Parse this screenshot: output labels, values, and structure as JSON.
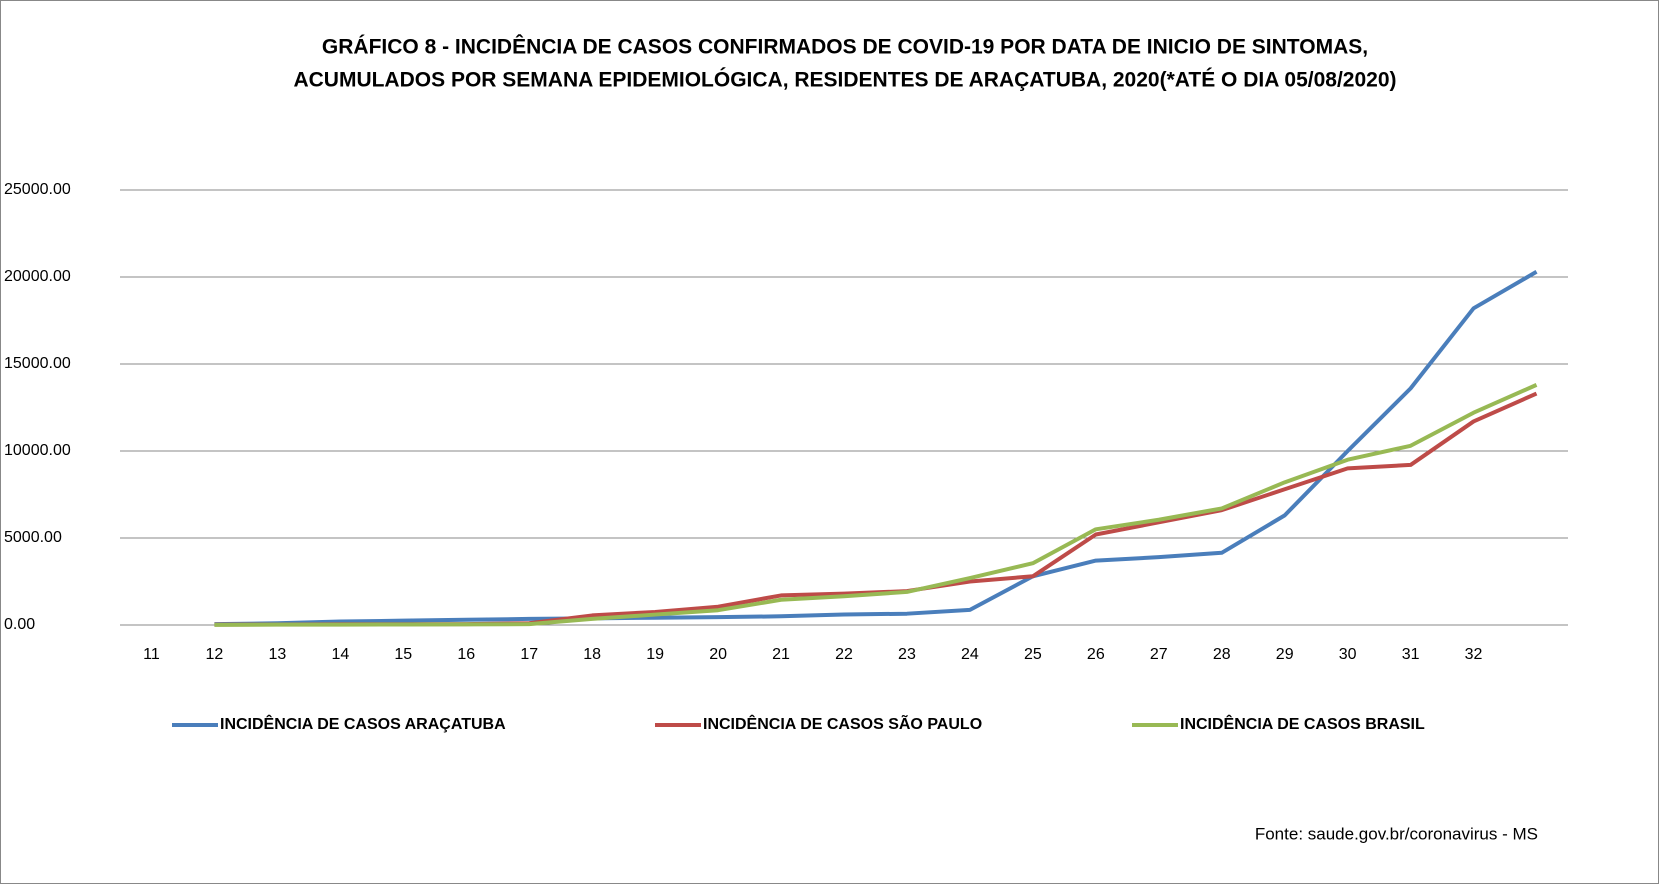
{
  "chart_data": {
    "type": "line",
    "title": [
      "GRÁFICO 8 - INCIDÊNCIA  DE CASOS CONFIRMADOS DE COVID-19 POR DATA DE INICIO DE SINTOMAS,",
      "ACUMULADOS POR SEMANA EPIDEMIOLÓGICA, RESIDENTES DE ARAÇATUBA, 2020(*ATÉ O DIA 05/08/2020)"
    ],
    "source": "Fonte: saude.gov.br/coronavirus - MS",
    "categories": [
      "11",
      "12",
      "13",
      "14",
      "15",
      "16",
      "17",
      "18",
      "19",
      "20",
      "21",
      "22",
      "23",
      "24",
      "25",
      "26",
      "27",
      "28",
      "29",
      "30",
      "31",
      "32",
      null
    ],
    "series": [
      {
        "name": "INCIDÊNCIA  DE CASOS ARAÇATUBA",
        "color": "#4a7ebb",
        "values": [
          null,
          50,
          100,
          200,
          250,
          300,
          350,
          380,
          420,
          450,
          500,
          600,
          650,
          870,
          2800,
          3700,
          3900,
          4150,
          6300,
          10000,
          13600,
          18200,
          20300
        ]
      },
      {
        "name": "INCIDÊNCIA  DE CASOS SÃO PAULO",
        "color": "#be4b48",
        "values": [
          null,
          20,
          30,
          40,
          45,
          50,
          100,
          550,
          750,
          1050,
          1700,
          1800,
          1950,
          2500,
          2800,
          5200,
          5900,
          6600,
          7800,
          9000,
          9200,
          11700,
          13300
        ]
      },
      {
        "name": "INCIDÊNCIA  DE CASOS BRASIL",
        "color": "#98b954",
        "values": [
          null,
          10,
          20,
          25,
          30,
          35,
          50,
          350,
          600,
          850,
          1450,
          1650,
          1900,
          2700,
          3550,
          5500,
          6050,
          6700,
          8200,
          9500,
          10300,
          12200,
          13800
        ]
      }
    ],
    "ylim": [
      0,
      25000
    ],
    "yticks": [
      {
        "value": 0,
        "label": "0.00"
      },
      {
        "value": 5000,
        "label": "5000.00"
      },
      {
        "value": 10000,
        "label": "10000.00"
      },
      {
        "value": 15000,
        "label": "15000.00"
      },
      {
        "value": 20000,
        "label": "20000.00"
      },
      {
        "value": 25000,
        "label": "25000.00"
      }
    ],
    "grid": true,
    "legend": "bottom"
  }
}
